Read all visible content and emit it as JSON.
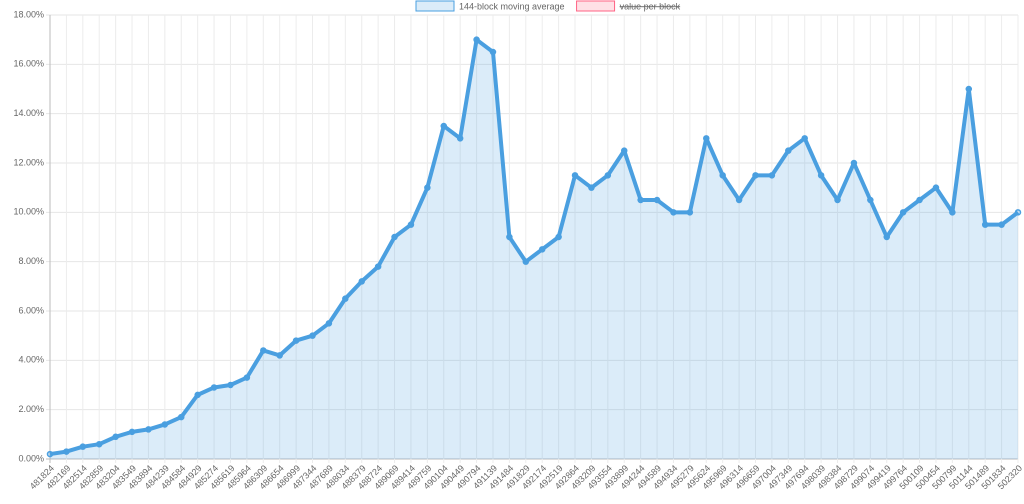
{
  "chart_data": {
    "type": "area",
    "categories": [
      "481824",
      "482169",
      "482514",
      "482859",
      "483204",
      "483549",
      "483894",
      "484239",
      "484584",
      "484929",
      "485274",
      "485619",
      "485964",
      "486309",
      "486654",
      "486999",
      "487344",
      "487689",
      "488034",
      "488379",
      "488724",
      "489069",
      "489414",
      "489759",
      "490104",
      "490449",
      "490794",
      "491139",
      "491484",
      "491829",
      "492174",
      "492519",
      "492864",
      "493209",
      "493554",
      "493899",
      "494244",
      "494589",
      "494934",
      "495279",
      "495624",
      "495969",
      "496314",
      "496659",
      "497004",
      "497349",
      "497694",
      "498039",
      "498384",
      "498729",
      "499074",
      "499419",
      "499764",
      "500109",
      "500454",
      "500799",
      "501144",
      "501489",
      "501834",
      "502320"
    ],
    "series": [
      {
        "name": "144-block moving average",
        "color": "#4a9fe0",
        "values": [
          0.2,
          0.3,
          0.5,
          0.6,
          0.9,
          1.1,
          1.2,
          1.4,
          1.7,
          2.6,
          2.9,
          3.0,
          3.3,
          4.4,
          4.2,
          4.8,
          5.0,
          5.5,
          6.5,
          7.2,
          7.8,
          9.0,
          9.5,
          11.0,
          13.5,
          13.0,
          17.0,
          16.5,
          9.0,
          8.0,
          8.5,
          9.0,
          11.5,
          11.0,
          11.5,
          12.5,
          10.5,
          10.5,
          10.0,
          10.0,
          13.0,
          11.5,
          10.5,
          11.5,
          11.5,
          12.5,
          13.0,
          11.5,
          10.5,
          12.0,
          10.5,
          9.0,
          10.0,
          10.5,
          11.0,
          10.0,
          15.0,
          9.5,
          9.5,
          10.0
        ]
      },
      {
        "name": "value per block",
        "color": "#ff6384",
        "hidden": true,
        "values": [
          null,
          null,
          null,
          null,
          null,
          null,
          null,
          null,
          null,
          null,
          null,
          null,
          null,
          null,
          null,
          null,
          null,
          null,
          null,
          null,
          null,
          null,
          null,
          null,
          null,
          null,
          null,
          null,
          null,
          null,
          null,
          null,
          null,
          null,
          null,
          null,
          null,
          null,
          null,
          null,
          null,
          null,
          null,
          null,
          null,
          null,
          null,
          null,
          null,
          null,
          null,
          null,
          null,
          null,
          null,
          null,
          null,
          null,
          null,
          null
        ]
      }
    ],
    "ylim": [
      0,
      18
    ],
    "yticks": [
      {
        "value": 0,
        "label": "0.00%"
      },
      {
        "value": 2,
        "label": "2.00%"
      },
      {
        "value": 4,
        "label": "4.00%"
      },
      {
        "value": 6,
        "label": "6.00%"
      },
      {
        "value": 8,
        "label": "8.00%"
      },
      {
        "value": 10,
        "label": "10.00%"
      },
      {
        "value": 12,
        "label": "12.00%"
      },
      {
        "value": 14,
        "label": "14.00%"
      },
      {
        "value": 16,
        "label": "16.00%"
      },
      {
        "value": 18,
        "label": "18.00%"
      }
    ],
    "grid": true,
    "legend": "top"
  }
}
